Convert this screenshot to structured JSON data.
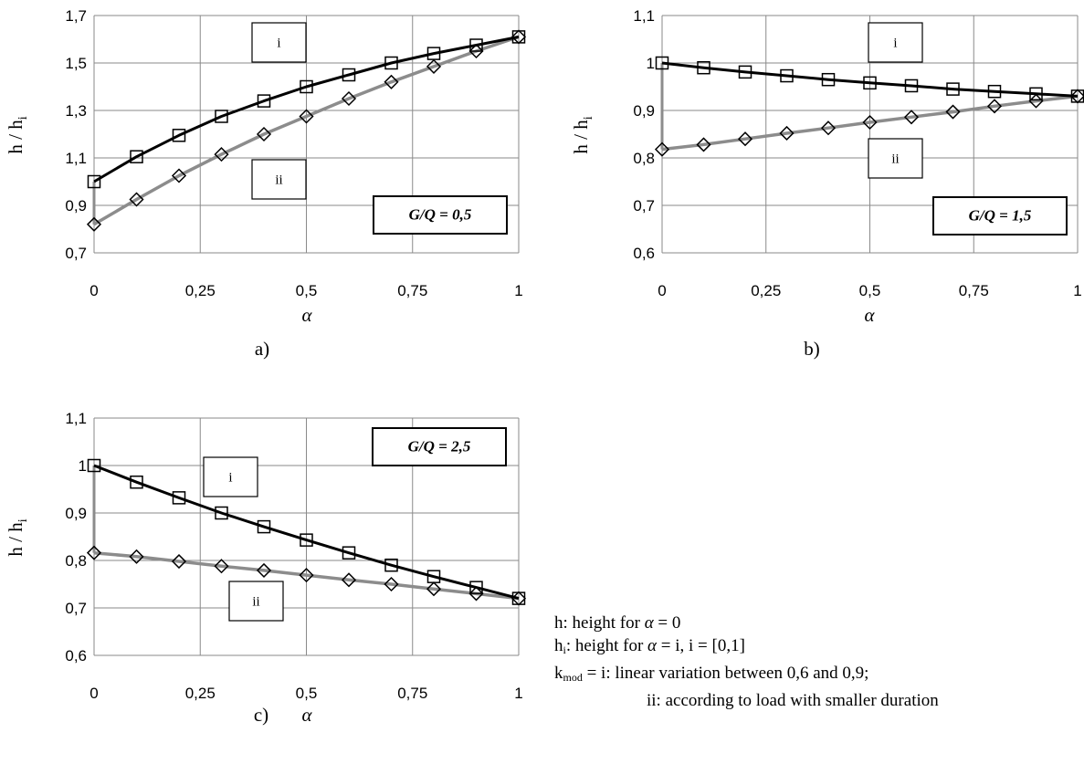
{
  "chart_data": [
    {
      "type": "line",
      "panel_label": "a)",
      "ylabel_main": "h / h",
      "ylabel_sub": "i",
      "xlabel": "α",
      "box_label": "G/Q = 0,5",
      "ylim": [
        0.7,
        1.7
      ],
      "y_ticks": [
        0.7,
        0.9,
        1.1,
        1.3,
        1.5,
        1.7
      ],
      "y_tick_labels": [
        "0,7",
        "0,9",
        "1,1",
        "1,3",
        "1,5",
        "1,7"
      ],
      "x_ticks": [
        0,
        0.25,
        0.5,
        0.75,
        1
      ],
      "x_tick_labels": [
        "0",
        "0,25",
        "0,5",
        "0,75",
        "1"
      ],
      "grid": true,
      "x": [
        0,
        0.1,
        0.2,
        0.3,
        0.4,
        0.5,
        0.6,
        0.7,
        0.8,
        0.9,
        1
      ],
      "series": [
        {
          "name": "i",
          "marker": "square",
          "color": "#000000",
          "values": [
            1.0,
            1.105,
            1.195,
            1.275,
            1.34,
            1.4,
            1.45,
            1.5,
            1.54,
            1.575,
            1.61
          ]
        },
        {
          "name": "ii",
          "marker": "diamond",
          "color": "#8c8c8c",
          "values": [
            0.82,
            0.925,
            1.025,
            1.115,
            1.2,
            1.275,
            1.35,
            1.42,
            1.485,
            1.55,
            1.61
          ]
        }
      ],
      "vertical_connector": [
        0.82,
        1.0
      ]
    },
    {
      "type": "line",
      "panel_label": "b)",
      "ylabel_main": "h / h",
      "ylabel_sub": "i",
      "xlabel": "α",
      "box_label": "G/Q = 1,5",
      "ylim": [
        0.6,
        1.1
      ],
      "y_ticks": [
        0.6,
        0.7,
        0.8,
        0.9,
        1.0,
        1.1
      ],
      "y_tick_labels": [
        "0,6",
        "0,7",
        "0,8",
        "0,9",
        "1",
        "1,1"
      ],
      "x_ticks": [
        0,
        0.25,
        0.5,
        0.75,
        1
      ],
      "x_tick_labels": [
        "0",
        "0,25",
        "0,5",
        "0,75",
        "1"
      ],
      "grid": true,
      "x": [
        0,
        0.1,
        0.2,
        0.3,
        0.4,
        0.5,
        0.6,
        0.7,
        0.8,
        0.9,
        1
      ],
      "series": [
        {
          "name": "i",
          "marker": "square",
          "color": "#000000",
          "values": [
            1.0,
            0.99,
            0.981,
            0.973,
            0.965,
            0.958,
            0.952,
            0.945,
            0.94,
            0.935,
            0.93
          ]
        },
        {
          "name": "ii",
          "marker": "diamond",
          "color": "#8c8c8c",
          "values": [
            0.818,
            0.828,
            0.84,
            0.852,
            0.863,
            0.875,
            0.886,
            0.897,
            0.909,
            0.92,
            0.93
          ]
        }
      ],
      "vertical_connector": [
        0.818,
        1.0
      ]
    },
    {
      "type": "line",
      "panel_label": "c)",
      "ylabel_main": "h / h",
      "ylabel_sub": "i",
      "xlabel": "α",
      "box_label": "G/Q = 2,5",
      "ylim": [
        0.6,
        1.1
      ],
      "y_ticks": [
        0.6,
        0.7,
        0.8,
        0.9,
        1.0,
        1.1
      ],
      "y_tick_labels": [
        "0,6",
        "0,7",
        "0,8",
        "0,9",
        "1",
        "1,1"
      ],
      "x_ticks": [
        0,
        0.25,
        0.5,
        0.75,
        1
      ],
      "x_tick_labels": [
        "0",
        "0,25",
        "0,5",
        "0,75",
        "1"
      ],
      "grid": true,
      "x": [
        0,
        0.1,
        0.2,
        0.3,
        0.4,
        0.5,
        0.6,
        0.7,
        0.8,
        0.9,
        1
      ],
      "series": [
        {
          "name": "i",
          "marker": "square",
          "color": "#000000",
          "values": [
            1.0,
            0.965,
            0.932,
            0.9,
            0.871,
            0.843,
            0.816,
            0.79,
            0.766,
            0.743,
            0.72
          ]
        },
        {
          "name": "ii",
          "marker": "diamond",
          "color": "#8c8c8c",
          "values": [
            0.816,
            0.808,
            0.798,
            0.788,
            0.779,
            0.769,
            0.759,
            0.75,
            0.74,
            0.73,
            0.72
          ]
        }
      ],
      "vertical_connector": [
        0.816,
        1.0
      ]
    }
  ],
  "legend": {
    "line1_prefix": "h: height for ",
    "line1_alpha": "α",
    "line1_suffix": " = 0",
    "line2_h": "h",
    "line2_sub": "i",
    "line2_prefix": ": height for ",
    "line2_alpha": "α",
    "line2_suffix": " = i, i = [0,1]",
    "line3_k": "k",
    "line3_sub": "mod",
    "line3_text": " = i: linear variation between 0,6 and 0,9;",
    "line4_text": "ii: according to load with smaller duration"
  }
}
